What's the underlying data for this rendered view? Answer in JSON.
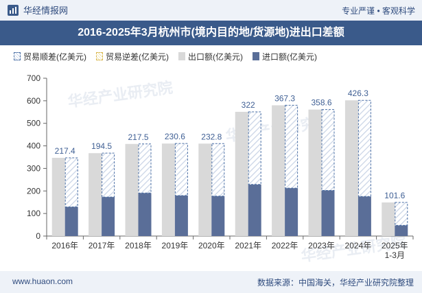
{
  "header": {
    "brand": "华经情报网",
    "slogan": "专业严谨 • 客观科学"
  },
  "chart_data": {
    "type": "bar",
    "title": "2016-2025年3月杭州市(境内目的地/货源地)进出口差额",
    "categories": [
      "2016年",
      "2017年",
      "2018年",
      "2019年",
      "2020年",
      "2021年",
      "2022年",
      "2023年",
      "2024年",
      "2025年\n1-3月"
    ],
    "series": [
      {
        "name": "贸易顺差(亿美元)",
        "values": [
          217.4,
          194.5,
          217.5,
          230.6,
          232.8,
          322,
          367.3,
          358.6,
          426.3,
          101.6
        ]
      },
      {
        "name": "贸易逆差(亿美元)",
        "values": [
          0,
          0,
          0,
          0,
          0,
          0,
          0,
          0,
          0,
          0
        ]
      },
      {
        "name": "出口额(亿美元)",
        "values": [
          346.8,
          367.7,
          408.5,
          410.3,
          410.0,
          551.0,
          580.0,
          561.0,
          602.0,
          149.0
        ]
      },
      {
        "name": "进口额(亿美元)",
        "values": [
          129.4,
          173.2,
          191.0,
          179.7,
          177.2,
          229.0,
          212.7,
          202.4,
          175.7,
          47.4
        ]
      }
    ],
    "data_labels": [
      "217.4",
      "194.5",
      "217.5",
      "230.6",
      "232.8",
      "322",
      "367.3",
      "358.6",
      "426.3",
      "101.6"
    ],
    "ylim": [
      0,
      700
    ],
    "yticks": [
      0,
      100,
      200,
      300,
      400,
      500,
      600,
      700
    ],
    "grid": false,
    "legend_position": "top-left",
    "colors": {
      "export": "#d9d9d9",
      "import": "#5a6e98",
      "surplus_border": "#4a6fa5",
      "surplus_hatch": "#c9d4e6",
      "deficit_border": "#d8b64a",
      "label": "#3f5f94"
    }
  },
  "watermark": "华经产业研究院",
  "footer": {
    "website": "www.huaon.com",
    "source": "数据来源：中国海关，华经产业研究院整理"
  }
}
